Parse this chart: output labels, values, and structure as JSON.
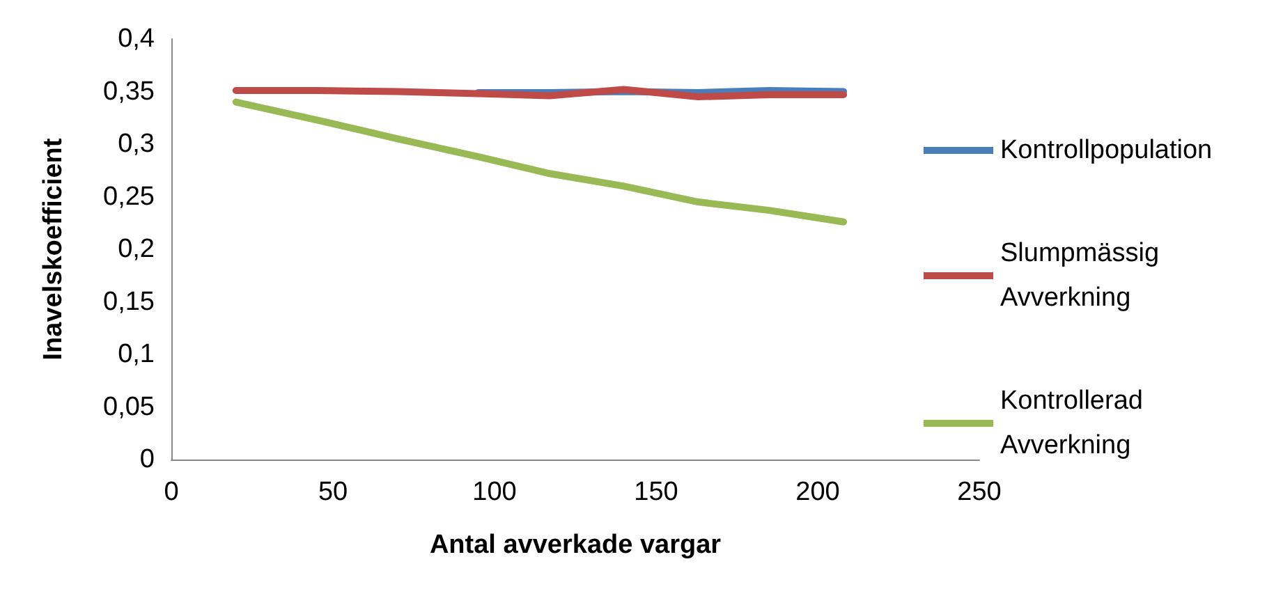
{
  "chart_data": {
    "type": "line",
    "xlabel": "Antal avverkade vargar",
    "ylabel": "Inavelskoefficient",
    "x": [
      20,
      45,
      70,
      95,
      117,
      140,
      163,
      185,
      208
    ],
    "series": [
      {
        "name": "Kontrollpopulation",
        "color": "#4a7ebb",
        "values": [
          null,
          null,
          null,
          0.349,
          0.349,
          0.35,
          0.349,
          0.351,
          0.35
        ]
      },
      {
        "name": "Slumpmässig Avverkning",
        "color": "#be4b48",
        "values": [
          0.351,
          0.351,
          0.35,
          0.348,
          0.346,
          0.352,
          0.345,
          0.347,
          0.347
        ]
      },
      {
        "name": "Kontrollerad Avverkning",
        "color": "#98b954",
        "values": [
          0.34,
          0.323,
          0.305,
          0.288,
          0.272,
          0.26,
          0.245,
          0.237,
          0.226
        ]
      }
    ],
    "xlim": [
      0,
      250
    ],
    "xticks": [
      0,
      50,
      100,
      150,
      200,
      250
    ],
    "ylim": [
      0,
      0.4
    ],
    "yticks": [
      {
        "value": 0,
        "label": "0"
      },
      {
        "value": 0.05,
        "label": "0,05"
      },
      {
        "value": 0.1,
        "label": "0,1"
      },
      {
        "value": 0.15,
        "label": "0,15"
      },
      {
        "value": 0.2,
        "label": "0,2"
      },
      {
        "value": 0.25,
        "label": "0,25"
      },
      {
        "value": 0.3,
        "label": "0,3"
      },
      {
        "value": 0.35,
        "label": "0,35"
      },
      {
        "value": 0.4,
        "label": "0,4"
      }
    ],
    "legend": "right",
    "marker": "none",
    "line_style": "solid"
  }
}
